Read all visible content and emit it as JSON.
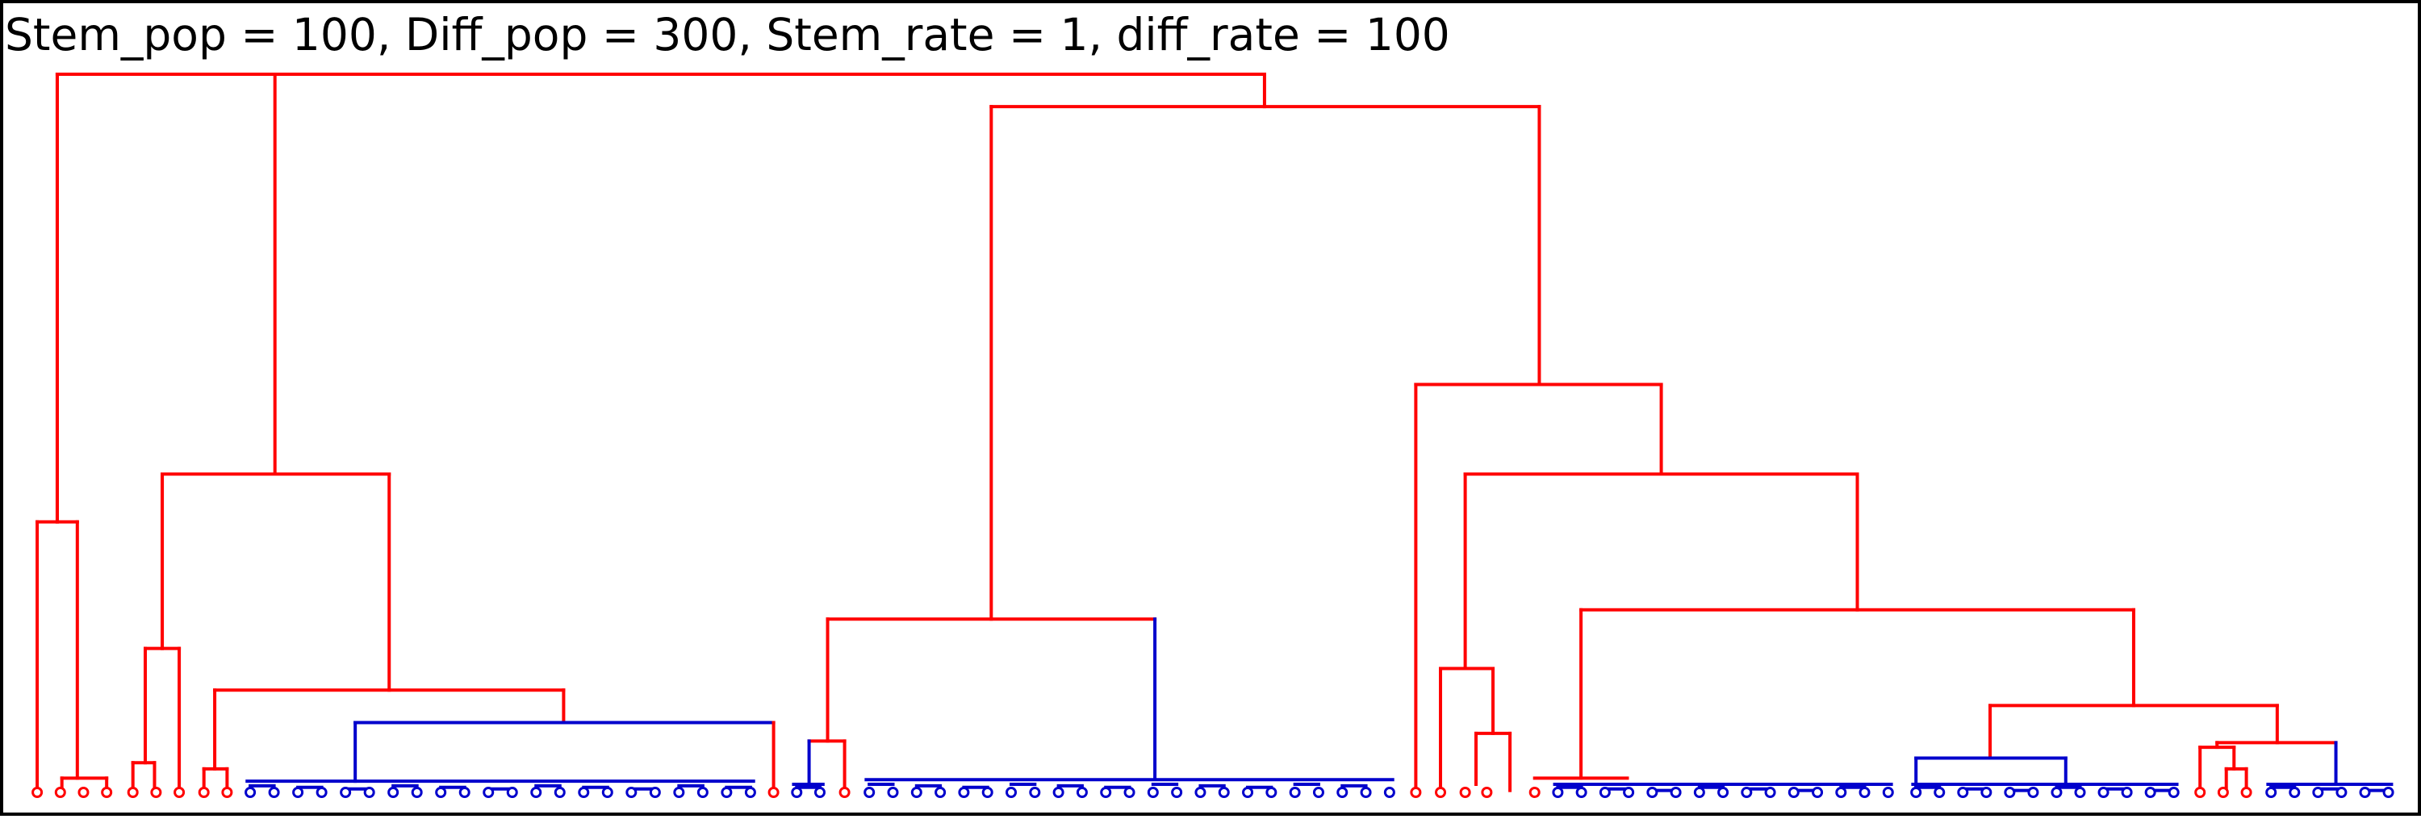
{
  "title": "Stem_pop = 100, Diff_pop = 300, Stem_rate = 1, diff_rate = 100",
  "colors": {
    "stem": "#ff0000",
    "diff": "#0000cc",
    "frame": "#000000",
    "background": "#ffffff"
  }
}
